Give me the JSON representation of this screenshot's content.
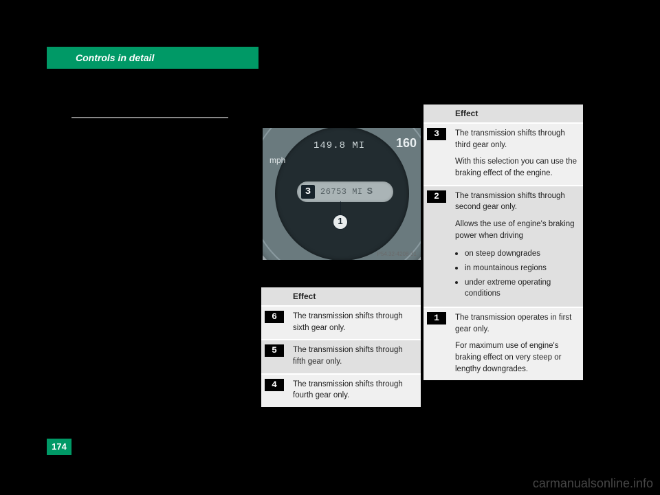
{
  "header": {
    "title": "Controls in detail"
  },
  "page_number": "174",
  "watermark": "carmanualsonline.info",
  "gauge": {
    "trip": "149.8 MI",
    "tick_label": "160",
    "unit": "mph",
    "gear_shown": "3",
    "odometer": "26753 MI",
    "mode": "S",
    "callout": "1",
    "img_code": "P54.32-4208-31"
  },
  "table_left": {
    "header": "Effect",
    "rows": [
      {
        "gear": "6",
        "text": "The transmission shifts through sixth gear only."
      },
      {
        "gear": "5",
        "text": "The transmission shifts through fifth gear only."
      },
      {
        "gear": "4",
        "text": "The transmission shifts through fourth gear only."
      }
    ]
  },
  "table_right": {
    "header": "Effect",
    "rows": [
      {
        "gear": "3",
        "paras": [
          "The transmission shifts through third gear only.",
          "With this selection you can use the braking effect of the engine."
        ]
      },
      {
        "gear": "2",
        "paras": [
          "The transmission shifts through second gear only.",
          "Allows the use of engine's braking power when driving"
        ],
        "bullets": [
          "on steep downgrades",
          "in mountainous regions",
          "under extreme operating conditions"
        ]
      },
      {
        "gear": "1",
        "paras": [
          "The transmission operates in first gear only.",
          "For maximum use of engine's braking effect on very steep or lengthy downgrades."
        ]
      }
    ]
  }
}
